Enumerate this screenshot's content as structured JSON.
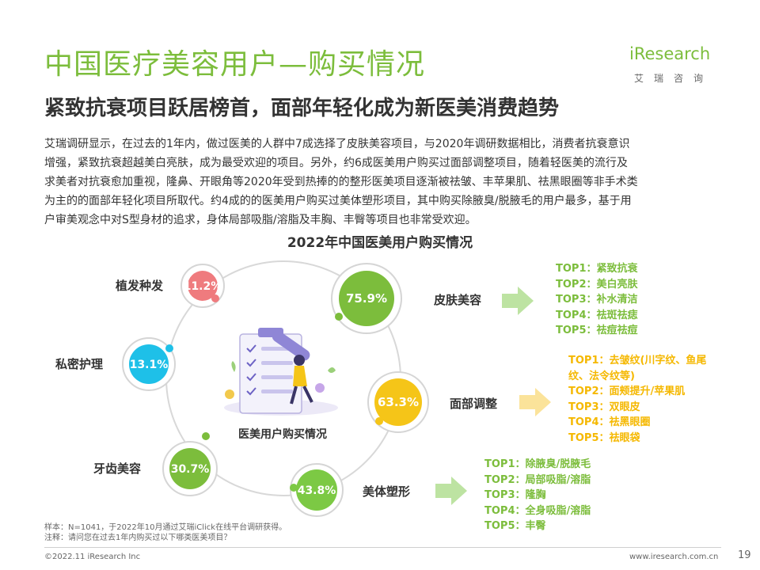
{
  "header": {
    "title": "中国医疗美容用户—购买情况",
    "subtitle": "紧致抗衰项目跃居榜首，面部年轻化成为新医美消费趋势",
    "logo_text": "iResearch",
    "logo_sub": "艾瑞咨询"
  },
  "intro": {
    "line1": "艾瑞调研显示，在过去的1年内，做过医美的人群中7成选择了皮肤美容项目，与2020年调研数据相比，消费者抗衰意识",
    "line2": "增强，紧致抗衰超越美白亮肤，成为最受欢迎的项目。另外，约6成医美用户购买过面部调整项目，随着轻医美的流行及",
    "line3": "求美者对抗衰愈加重视，隆鼻、开眼角等2020年受到热捧的的整形医美项目逐渐被祛皱、丰苹果肌、祛黑眼圈等非手术类",
    "line4": "为主的的面部年轻化项目所取代。约4成的的医美用户购买过美体塑形项目，其中购买除腋臭/脱腋毛的用户最多，基于用",
    "line5": "户审美观念中对S型身材的追求，身体局部吸脂/溶脂及丰胸、丰臀等项目也非常受欢迎。"
  },
  "center_label": "医美用户购买情况",
  "chart_data": {
    "type": "bubble",
    "title": "2022年中国医美用户购买情况",
    "unit": "%",
    "categories": [
      "皮肤美容",
      "面部调整",
      "美体塑形",
      "牙齿美容",
      "私密护理",
      "植发种发"
    ],
    "values": [
      75.9,
      63.3,
      43.8,
      30.7,
      13.1,
      11.2
    ],
    "labels": [
      "75.9%",
      "63.3%",
      "43.8%",
      "30.7%",
      "13.1%",
      "11.2%"
    ],
    "colors": [
      "#7cbd3c",
      "#f5c518",
      "#7cc944",
      "#7cbd3c",
      "#1ec0e8",
      "#ef7b7e"
    ],
    "top_lists": [
      {
        "category": "皮肤美容",
        "color": "#7cbd3c",
        "items": [
          "TOP1：紧致抗衰",
          "TOP2：美白亮肤",
          "TOP3：补水清洁",
          "TOP4：祛斑祛痣",
          "TOP5：祛痘祛痘"
        ]
      },
      {
        "category": "面部调整",
        "color": "#f5b800",
        "items": [
          "TOP1：去皱纹(川字纹、鱼尾",
          "纹、法令纹等)",
          "TOP2：面颊提升/苹果肌",
          "TOP3：双眼皮",
          "TOP4：祛黑眼圈",
          "TOP5：祛眼袋"
        ]
      },
      {
        "category": "美体塑形",
        "color": "#7cbd3c",
        "items": [
          "TOP1：除腋臭/脱腋毛",
          "TOP2：局部吸脂/溶脂",
          "TOP3：隆胸",
          "TOP4：全身吸脂/溶脂",
          "TOP5：丰臀"
        ]
      }
    ]
  },
  "notes": {
    "sample": "样本：N=1041，于2022年10月通过艾瑞iClick在线平台调研获得。",
    "remark": "注释：请问您在过去1年内购买过以下哪类医美项目？"
  },
  "footer": {
    "copyright": "©2022.11 iResearch Inc",
    "website": "www.iresearch.com.cn",
    "page": "19"
  }
}
